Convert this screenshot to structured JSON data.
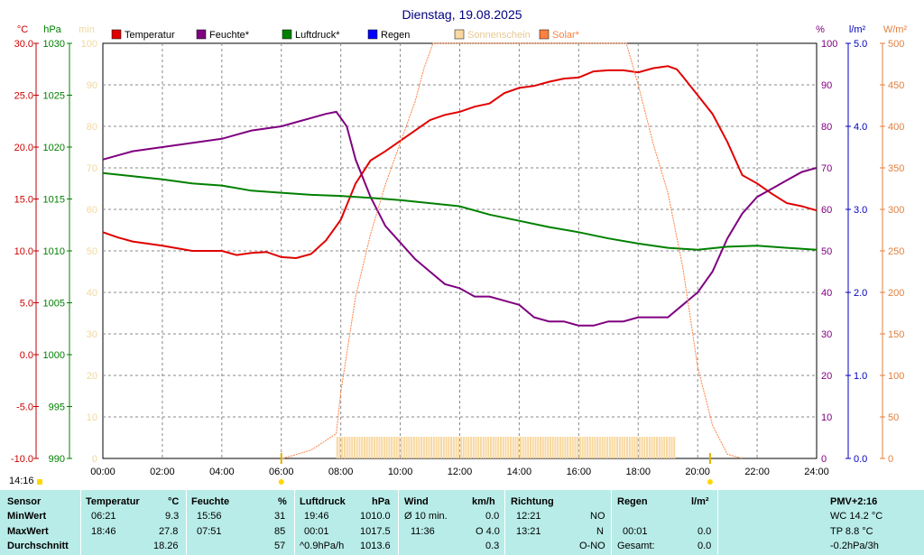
{
  "chart_data": {
    "type": "line",
    "title": "Dienstag, 19.08.2025",
    "x_ticks": [
      "00:00",
      "02:00",
      "04:00",
      "06:00",
      "08:00",
      "10:00",
      "12:00",
      "14:00",
      "16:00",
      "18:00",
      "20:00",
      "22:00",
      "24:00"
    ],
    "axes": {
      "temp": {
        "unit": "°C",
        "ticks": [
          "30.0",
          "25.0",
          "20.0",
          "15.0",
          "10.0",
          "5.0",
          "0.0",
          "-5.0",
          "-10.0"
        ],
        "range": [
          -10,
          30
        ],
        "color": "#d00000"
      },
      "pressure": {
        "unit": "hPa",
        "ticks": [
          "1030",
          "1025",
          "1020",
          "1015",
          "1010",
          "1005",
          "1000",
          "995",
          "990"
        ],
        "range": [
          990,
          1030
        ],
        "color": "#008000"
      },
      "sun": {
        "unit": "min",
        "ticks": [
          "100",
          "90",
          "80",
          "70",
          "60",
          "50",
          "40",
          "30",
          "20",
          "10",
          "0"
        ],
        "range": [
          0,
          100
        ],
        "color": "#f0d8a0"
      },
      "humidity": {
        "unit": "%",
        "ticks": [
          "100",
          "90",
          "80",
          "70",
          "60",
          "50",
          "40",
          "30",
          "20",
          "10",
          "0"
        ],
        "range": [
          0,
          100
        ],
        "color": "#800080"
      },
      "rain": {
        "unit": "l/m²",
        "ticks": [
          "5.0",
          "4.0",
          "3.0",
          "2.0",
          "1.0",
          "0.0"
        ],
        "range": [
          0,
          5
        ],
        "color": "#0000c0"
      },
      "solar": {
        "unit": "W/m²",
        "ticks": [
          "500",
          "450",
          "400",
          "350",
          "300",
          "250",
          "200",
          "150",
          "100",
          "50",
          "0"
        ],
        "range": [
          0,
          500
        ],
        "color": "#e08040"
      }
    },
    "legend": [
      {
        "label": "Temperatur",
        "color": "#e00000"
      },
      {
        "label": "Feuchte*",
        "color": "#800080"
      },
      {
        "label": "Luftdruck*",
        "color": "#008000"
      },
      {
        "label": "Regen",
        "color": "#0000ff"
      },
      {
        "label": "Sonnenschein",
        "color": "#f8d8a0"
      },
      {
        "label": "Solar*",
        "color": "#ff8040"
      }
    ],
    "series": [
      {
        "name": "Temperatur",
        "axis": "temp",
        "points": [
          [
            0,
            11.8
          ],
          [
            0.5,
            11.3
          ],
          [
            1,
            10.9
          ],
          [
            2,
            10.5
          ],
          [
            3,
            10.0
          ],
          [
            4,
            10.0
          ],
          [
            4.5,
            9.6
          ],
          [
            5,
            9.8
          ],
          [
            5.5,
            9.9
          ],
          [
            6,
            9.4
          ],
          [
            6.5,
            9.3
          ],
          [
            7,
            9.7
          ],
          [
            7.5,
            11.0
          ],
          [
            8,
            13.0
          ],
          [
            8.5,
            16.5
          ],
          [
            9,
            18.7
          ],
          [
            9.5,
            19.6
          ],
          [
            10,
            20.6
          ],
          [
            10.5,
            21.6
          ],
          [
            11,
            22.6
          ],
          [
            11.5,
            23.1
          ],
          [
            12,
            23.4
          ],
          [
            12.5,
            23.9
          ],
          [
            13,
            24.2
          ],
          [
            13.5,
            25.2
          ],
          [
            14,
            25.7
          ],
          [
            14.5,
            25.9
          ],
          [
            15,
            26.3
          ],
          [
            15.5,
            26.6
          ],
          [
            16,
            26.7
          ],
          [
            16.5,
            27.3
          ],
          [
            17,
            27.4
          ],
          [
            17.5,
            27.4
          ],
          [
            18,
            27.2
          ],
          [
            18.5,
            27.6
          ],
          [
            19,
            27.8
          ],
          [
            19.3,
            27.5
          ],
          [
            19.5,
            26.8
          ],
          [
            20,
            25.0
          ],
          [
            20.5,
            23.2
          ],
          [
            21,
            20.5
          ],
          [
            21.5,
            17.3
          ],
          [
            22,
            16.5
          ],
          [
            22.5,
            15.5
          ],
          [
            23,
            14.6
          ],
          [
            23.5,
            14.3
          ],
          [
            24,
            13.9
          ]
        ]
      },
      {
        "name": "Feuchte*",
        "axis": "humidity",
        "points": [
          [
            0,
            72
          ],
          [
            0.5,
            73
          ],
          [
            1,
            74
          ],
          [
            2,
            75
          ],
          [
            3,
            76
          ],
          [
            4,
            77
          ],
          [
            5,
            79
          ],
          [
            6,
            80
          ],
          [
            6.5,
            81
          ],
          [
            7,
            82
          ],
          [
            7.5,
            83
          ],
          [
            7.85,
            83.5
          ],
          [
            8.2,
            80
          ],
          [
            8.5,
            72
          ],
          [
            9,
            63
          ],
          [
            9.5,
            56
          ],
          [
            10,
            52
          ],
          [
            10.5,
            48
          ],
          [
            11,
            45
          ],
          [
            11.5,
            42
          ],
          [
            12,
            41
          ],
          [
            12.5,
            39
          ],
          [
            13,
            39
          ],
          [
            13.5,
            38
          ],
          [
            14,
            37
          ],
          [
            14.5,
            34
          ],
          [
            15,
            33
          ],
          [
            15.5,
            33
          ],
          [
            16,
            32
          ],
          [
            16.5,
            32
          ],
          [
            17,
            33
          ],
          [
            17.5,
            33
          ],
          [
            18,
            34
          ],
          [
            18.5,
            34
          ],
          [
            19,
            34
          ],
          [
            19.5,
            37
          ],
          [
            20,
            40
          ],
          [
            20.5,
            45
          ],
          [
            21,
            53
          ],
          [
            21.5,
            59
          ],
          [
            22,
            63
          ],
          [
            22.5,
            65
          ],
          [
            23,
            67
          ],
          [
            23.5,
            69
          ],
          [
            24,
            70
          ]
        ]
      },
      {
        "name": "Luftdruck*",
        "axis": "pressure",
        "points": [
          [
            0,
            1017.5
          ],
          [
            1,
            1017.2
          ],
          [
            2,
            1016.9
          ],
          [
            3,
            1016.5
          ],
          [
            4,
            1016.3
          ],
          [
            5,
            1015.8
          ],
          [
            6,
            1015.6
          ],
          [
            7,
            1015.4
          ],
          [
            8,
            1015.3
          ],
          [
            9,
            1015.1
          ],
          [
            10,
            1014.9
          ],
          [
            11,
            1014.6
          ],
          [
            12,
            1014.3
          ],
          [
            13,
            1013.5
          ],
          [
            14,
            1012.9
          ],
          [
            15,
            1012.3
          ],
          [
            16,
            1011.8
          ],
          [
            17,
            1011.2
          ],
          [
            18,
            1010.7
          ],
          [
            19,
            1010.3
          ],
          [
            20,
            1010.1
          ],
          [
            21,
            1010.4
          ],
          [
            22,
            1010.5
          ],
          [
            23,
            1010.3
          ],
          [
            24,
            1010.1
          ]
        ]
      },
      {
        "name": "Solar*",
        "axis": "solar",
        "points": [
          [
            6.05,
            0
          ],
          [
            7,
            10
          ],
          [
            7.85,
            30
          ],
          [
            8.0,
            80
          ],
          [
            8.5,
            195
          ],
          [
            9,
            270
          ],
          [
            9.5,
            330
          ],
          [
            10,
            380
          ],
          [
            10.5,
            430
          ],
          [
            10.8,
            470
          ],
          [
            11.1,
            500
          ],
          [
            17.6,
            500
          ],
          [
            18,
            450
          ],
          [
            18.5,
            380
          ],
          [
            19,
            320
          ],
          [
            19.5,
            230
          ],
          [
            20,
            110
          ],
          [
            20.5,
            40
          ],
          [
            21,
            5
          ],
          [
            21.5,
            0
          ]
        ]
      }
    ],
    "sunshine_range": [
      7.85,
      19.2
    ],
    "sunrise": "06:00",
    "sunset": "20:25"
  },
  "status": {
    "time": "14:16"
  },
  "table": {
    "sensor": {
      "head": "Sensor",
      "rows": [
        "MinWert",
        "MaxWert",
        "Durchschnitt"
      ]
    },
    "temperatur": {
      "head": "Temperatur",
      "unit": "°C",
      "rows": [
        [
          "06:21",
          "9.3"
        ],
        [
          "18:46",
          "27.8"
        ],
        [
          "",
          "18.26"
        ]
      ]
    },
    "feuchte": {
      "head": "Feuchte",
      "unit": "%",
      "rows": [
        [
          "15:56",
          "31"
        ],
        [
          "07:51",
          "85"
        ],
        [
          "",
          "57"
        ]
      ]
    },
    "luftdruck": {
      "head": "Luftdruck",
      "unit": "hPa",
      "rows": [
        [
          "19:46",
          "1010.0"
        ],
        [
          "00:01",
          "1017.5"
        ],
        [
          "^0.9hPa/h",
          "1013.6"
        ]
      ]
    },
    "wind": {
      "head": "Wind",
      "unit": "km/h",
      "rows": [
        [
          "Ø 10 min.",
          "0.0"
        ],
        [
          "11:36",
          "O 4.0"
        ],
        [
          "",
          "0.3"
        ]
      ]
    },
    "richtung": {
      "head": "Richtung",
      "rows": [
        [
          "12:21",
          "NO"
        ],
        [
          "13:21",
          "N"
        ],
        [
          "",
          "O-NO"
        ]
      ]
    },
    "regen": {
      "head": "Regen",
      "unit": "l/m²",
      "rows": [
        [
          "",
          ""
        ],
        [
          "00:01",
          "0.0"
        ],
        [
          "Gesamt:",
          "0.0"
        ]
      ]
    },
    "pmv": {
      "head": "PMV+2:16",
      "rows": [
        "WC 14.2 °C",
        "TP 8.8 °C",
        "-0.2hPa/3h"
      ]
    }
  }
}
